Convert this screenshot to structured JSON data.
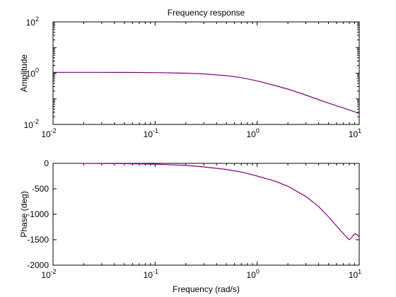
{
  "chart_data": [
    {
      "type": "line",
      "title": "Frequency response",
      "xlabel": "",
      "ylabel": "Amplitude",
      "xscale": "log",
      "yscale": "log",
      "xlim": [
        0.01,
        10
      ],
      "ylim": [
        0.01,
        100
      ],
      "grid": false,
      "xticks": [
        {
          "value": 0.01,
          "base": "10",
          "exp": "-2"
        },
        {
          "value": 0.1,
          "base": "10",
          "exp": "-1"
        },
        {
          "value": 1,
          "base": "10",
          "exp": "0"
        },
        {
          "value": 10,
          "base": "10",
          "exp": "1"
        }
      ],
      "yticks": [
        {
          "value": 0.01,
          "base": "10",
          "exp": "-2"
        },
        {
          "value": 1,
          "base": "10",
          "exp": "0"
        },
        {
          "value": 100,
          "base": "10",
          "exp": "2"
        }
      ],
      "series": [
        {
          "color": "#7f007f",
          "x": [
            0.01,
            0.02,
            0.05,
            0.1,
            0.2,
            0.3,
            0.5,
            0.7,
            1,
            1.5,
            2,
            3,
            5,
            7,
            10
          ],
          "y": [
            1.08,
            1.08,
            1.07,
            1.05,
            1.0,
            0.94,
            0.8,
            0.67,
            0.5,
            0.33,
            0.24,
            0.14,
            0.068,
            0.044,
            0.027
          ]
        }
      ]
    },
    {
      "type": "line",
      "title": "",
      "xlabel": "Frequency (rad/s)",
      "ylabel": "Phase (deg)",
      "xscale": "log",
      "yscale": "linear",
      "xlim": [
        0.01,
        10
      ],
      "ylim": [
        -2000,
        0
      ],
      "grid": false,
      "xticks": [
        {
          "value": 0.01,
          "base": "10",
          "exp": "-2"
        },
        {
          "value": 0.1,
          "base": "10",
          "exp": "-1"
        },
        {
          "value": 1,
          "base": "10",
          "exp": "0"
        },
        {
          "value": 10,
          "base": "10",
          "exp": "1"
        }
      ],
      "yticks": [
        {
          "value": 0,
          "label": "0"
        },
        {
          "value": -500,
          "label": "-500"
        },
        {
          "value": -1000,
          "label": "-1000"
        },
        {
          "value": -1500,
          "label": "-1500"
        },
        {
          "value": -2000,
          "label": "-2000"
        }
      ],
      "series": [
        {
          "color": "#7f007f",
          "x": [
            0.02,
            0.05,
            0.1,
            0.2,
            0.3,
            0.5,
            0.7,
            1,
            1.5,
            2,
            3,
            4,
            5,
            6,
            7,
            8,
            8.5,
            9,
            9.5,
            10
          ],
          "y": [
            -2,
            -5,
            -15,
            -40,
            -70,
            -120,
            -170,
            -250,
            -350,
            -450,
            -650,
            -850,
            -1050,
            -1230,
            -1380,
            -1500,
            -1450,
            -1380,
            -1400,
            -1440
          ]
        }
      ]
    }
  ]
}
